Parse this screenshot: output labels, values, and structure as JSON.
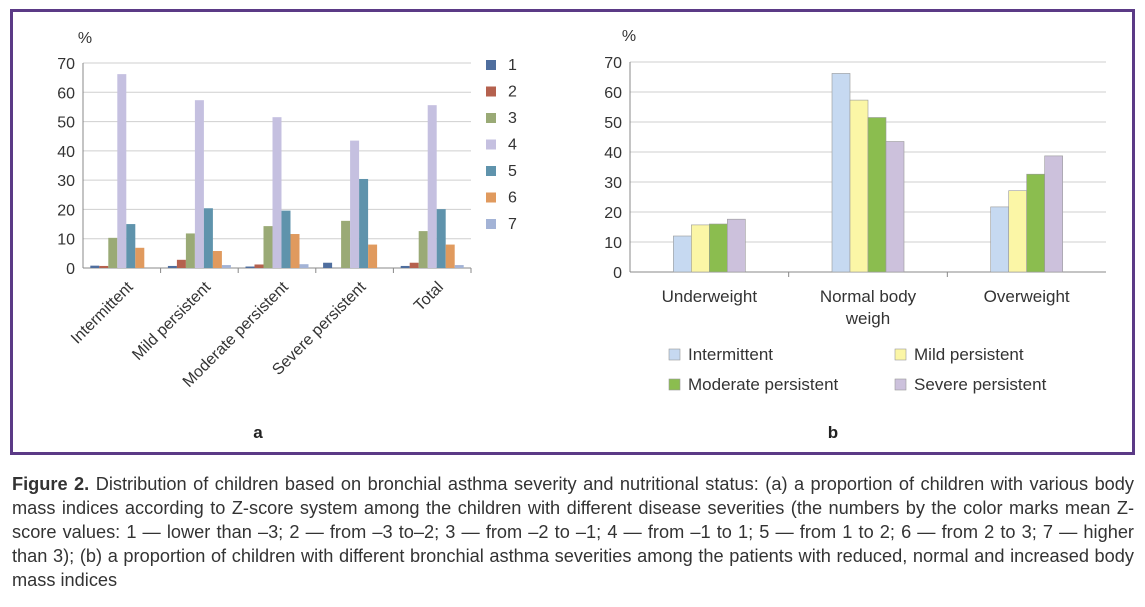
{
  "figure": {
    "panel_a_label": "a",
    "panel_b_label": "b"
  },
  "caption": {
    "label": "Figure 2.",
    "text": "Distribution of children based on bronchial asthma severity and nutritional status: (a) a proportion of children with various body mass indices according to Z-score system among the children with different disease severities (the numbers by the color marks mean Z-score values: 1 — lower than –3; 2 — from –3 to–2; 3 — from –2 to –1; 4 — from –1 to 1; 5 — from 1 to 2; 6 — from 2 to 3; 7 — higher than 3); (b) a proportion of children with different bronchial asthma severities among the patients with reduced, normal and increased body mass indices"
  },
  "chart_data": [
    {
      "type": "bar",
      "panel": "a",
      "ylabel": "%",
      "ylim": [
        0,
        70
      ],
      "yticks": [
        0,
        10,
        20,
        30,
        40,
        50,
        60,
        70
      ],
      "grid": true,
      "legend_position": "right",
      "categories": [
        "Intermittent",
        "Mild persistent",
        "Moderate persistent",
        "Severe persistent",
        "Total"
      ],
      "series": [
        {
          "name": "1",
          "color": "#4f6e9e",
          "values": [
            0.8,
            0.7,
            0.5,
            1.8,
            0.7
          ]
        },
        {
          "name": "2",
          "color": "#b5614e",
          "values": [
            0.7,
            2.8,
            1.2,
            0,
            1.8
          ]
        },
        {
          "name": "3",
          "color": "#9aaa76",
          "values": [
            10.3,
            11.8,
            14.3,
            16.1,
            12.6
          ]
        },
        {
          "name": "4",
          "color": "#c5c0e0",
          "values": [
            66.2,
            57.3,
            51.5,
            43.5,
            55.6
          ]
        },
        {
          "name": "5",
          "color": "#5f93ac",
          "values": [
            15.0,
            20.4,
            19.6,
            30.4,
            20.1
          ]
        },
        {
          "name": "6",
          "color": "#e09a5e",
          "values": [
            6.9,
            5.8,
            11.6,
            8.0,
            8.0
          ]
        },
        {
          "name": "7",
          "color": "#a3b3d6",
          "values": [
            0,
            1.0,
            1.3,
            0,
            1.0
          ]
        }
      ]
    },
    {
      "type": "bar",
      "panel": "b",
      "ylabel": "%",
      "ylim": [
        0,
        70
      ],
      "yticks": [
        0,
        10,
        20,
        30,
        40,
        50,
        60,
        70
      ],
      "grid": true,
      "legend_position": "bottom",
      "categories": [
        "Underweight",
        "Normal body weigh",
        "Overweight"
      ],
      "category_lines": [
        [
          "Underweight"
        ],
        [
          "Normal body",
          "weigh"
        ],
        [
          "Overweight"
        ]
      ],
      "series": [
        {
          "name": "Intermittent",
          "color": "#c6d9f1",
          "values": [
            12.0,
            66.2,
            21.7
          ]
        },
        {
          "name": "Mild persistent",
          "color": "#fbf6a6",
          "values": [
            15.7,
            57.3,
            27.1
          ]
        },
        {
          "name": "Moderate persistent",
          "color": "#8bbd4f",
          "values": [
            16.0,
            51.5,
            32.6
          ]
        },
        {
          "name": "Severe persistent",
          "color": "#ccc1dc",
          "values": [
            17.6,
            43.5,
            38.7
          ]
        }
      ]
    }
  ]
}
